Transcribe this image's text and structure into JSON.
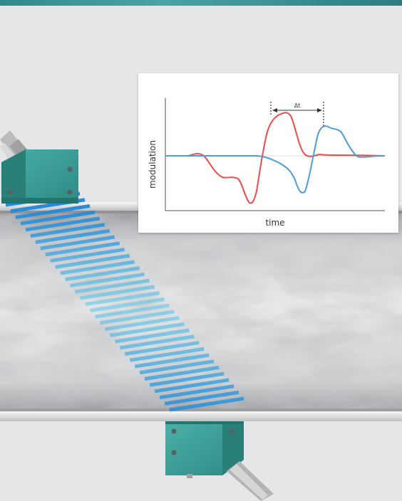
{
  "diagram": {
    "ylabel": "modulation",
    "xlabel": "time",
    "delta_label": "Δt",
    "colors": {
      "downstream_signal": "#f04b4b",
      "upstream_signal": "#4a9fd8",
      "sensor_housing": "#3a9e97",
      "beam": "#2aa6e0"
    }
  }
}
